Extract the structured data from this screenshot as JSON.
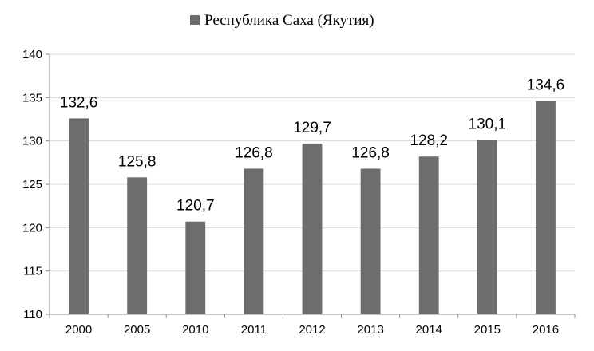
{
  "chart_data": {
    "type": "bar",
    "categories": [
      "2000",
      "2005",
      "2010",
      "2011",
      "2012",
      "2013",
      "2014",
      "2015",
      "2016"
    ],
    "series": [
      {
        "name": "Республика Саха (Якутия)",
        "values": [
          132.6,
          125.8,
          120.7,
          126.8,
          129.7,
          126.8,
          128.2,
          130.1,
          134.6
        ],
        "data_labels": [
          "132,6",
          "125,8",
          "120,7",
          "126,8",
          "129,7",
          "126,8",
          "128,2",
          "130,1",
          "134,6"
        ],
        "color": "#6d6d6d"
      }
    ],
    "ylim": [
      110,
      140
    ],
    "yticks": [
      110,
      115,
      120,
      125,
      130,
      135,
      140
    ],
    "grid": true,
    "legend_position": "top-center"
  }
}
